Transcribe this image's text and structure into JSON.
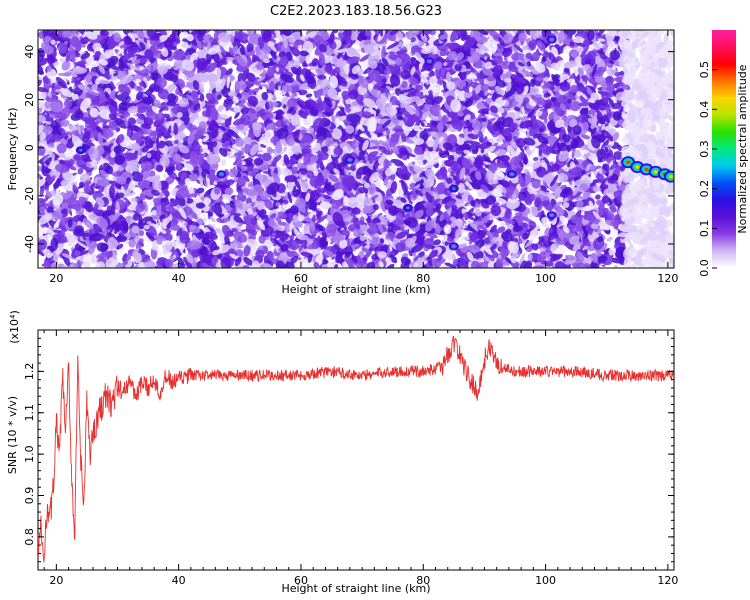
{
  "title": "C2E2.2023.183.18.56.G23",
  "chart_data": [
    {
      "type": "heatmap",
      "xlabel": "Height of straight line (km)",
      "ylabel": "Frequency (Hz)",
      "xlim": [
        17,
        121
      ],
      "ylim": [
        -50,
        49
      ],
      "xticks": [
        20,
        40,
        60,
        80,
        100,
        120
      ],
      "yticks": [
        -40,
        -20,
        0,
        20,
        40
      ],
      "colorbar": {
        "label": "Normalized spectral amplitude",
        "range": [
          0.0,
          0.6
        ],
        "ticks": [
          0.0,
          0.1,
          0.2,
          0.3,
          0.4,
          0.5
        ],
        "colormap": [
          "#ffffff",
          "#d0b8f4",
          "#8a3ce6",
          "#5a10d8",
          "#2a10e0",
          "#0050f8",
          "#00c8f0",
          "#00e880",
          "#28e000",
          "#b8e400",
          "#ffd400",
          "#ff7000",
          "#ff0000",
          "#ff1060",
          "#ff20a0"
        ]
      },
      "features": [
        {
          "type": "noise",
          "x_range": [
            17,
            113
          ],
          "y_range": [
            -50,
            49
          ],
          "level_range": [
            0.0,
            0.12
          ]
        },
        {
          "type": "noise",
          "x_range": [
            113,
            121
          ],
          "y_range": [
            -50,
            49
          ],
          "level_range": [
            0.0,
            0.04
          ]
        },
        {
          "type": "streak",
          "x": [
            113.5,
            115,
            116.5,
            118,
            119.5,
            120.5
          ],
          "y": [
            -6,
            -8,
            -9,
            -10,
            -11,
            -12
          ],
          "level": 0.45
        },
        {
          "type": "spot",
          "x": 24,
          "y": -1,
          "level": 0.12
        },
        {
          "type": "spot",
          "x": 81,
          "y": 36,
          "level": 0.1
        },
        {
          "type": "spot",
          "x": 101,
          "y": 45,
          "level": 0.1
        },
        {
          "type": "spot",
          "x": 77.5,
          "y": -25,
          "level": 0.14
        },
        {
          "type": "spot",
          "x": 85,
          "y": -17,
          "level": 0.12
        },
        {
          "type": "spot",
          "x": 85,
          "y": -41,
          "level": 0.1
        },
        {
          "type": "spot",
          "x": 94.5,
          "y": -11,
          "level": 0.1
        },
        {
          "type": "spot",
          "x": 47,
          "y": -11,
          "level": 0.1
        },
        {
          "type": "spot",
          "x": 68,
          "y": -5,
          "level": 0.1
        },
        {
          "type": "spot",
          "x": 101,
          "y": -28,
          "level": 0.1
        }
      ]
    },
    {
      "type": "line",
      "xlabel": "Height of straight line (km)",
      "ylabel": "SNR (10 * v/v)",
      "y_multiplier": "(x10⁴)",
      "xlim": [
        17,
        121
      ],
      "ylim": [
        0.72,
        1.3
      ],
      "xticks": [
        20,
        40,
        60,
        80,
        100,
        120
      ],
      "yticks": [
        0.8,
        0.9,
        1.0,
        1.1,
        1.2
      ],
      "color": "#e8312e",
      "series": [
        {
          "x": [
            17,
            17.5,
            18,
            18.5,
            19,
            19.5,
            20,
            20.5,
            21,
            21.5,
            22,
            22.5,
            23,
            23.5,
            24,
            24.5,
            25,
            25.5,
            26,
            27,
            28,
            29,
            30,
            31,
            32,
            33,
            34,
            35,
            36,
            37,
            38,
            39,
            40,
            42,
            44,
            46,
            50,
            55,
            60,
            65,
            70,
            75,
            80,
            83,
            85,
            86,
            87,
            88,
            89,
            90,
            91,
            92,
            93,
            95,
            100,
            105,
            110,
            115,
            120,
            121
          ],
          "y": [
            0.78,
            0.82,
            0.73,
            0.88,
            0.85,
            0.92,
            1.08,
            0.99,
            1.19,
            1.05,
            1.21,
            0.95,
            0.8,
            1.21,
            0.98,
            0.87,
            1.13,
            1.0,
            1.05,
            1.1,
            1.14,
            1.12,
            1.16,
            1.15,
            1.18,
            1.14,
            1.17,
            1.16,
            1.18,
            1.15,
            1.19,
            1.17,
            1.18,
            1.19,
            1.19,
            1.19,
            1.19,
            1.19,
            1.19,
            1.2,
            1.19,
            1.2,
            1.2,
            1.21,
            1.27,
            1.24,
            1.2,
            1.17,
            1.15,
            1.23,
            1.26,
            1.22,
            1.21,
            1.2,
            1.2,
            1.2,
            1.19,
            1.19,
            1.19,
            1.19
          ]
        }
      ]
    }
  ]
}
